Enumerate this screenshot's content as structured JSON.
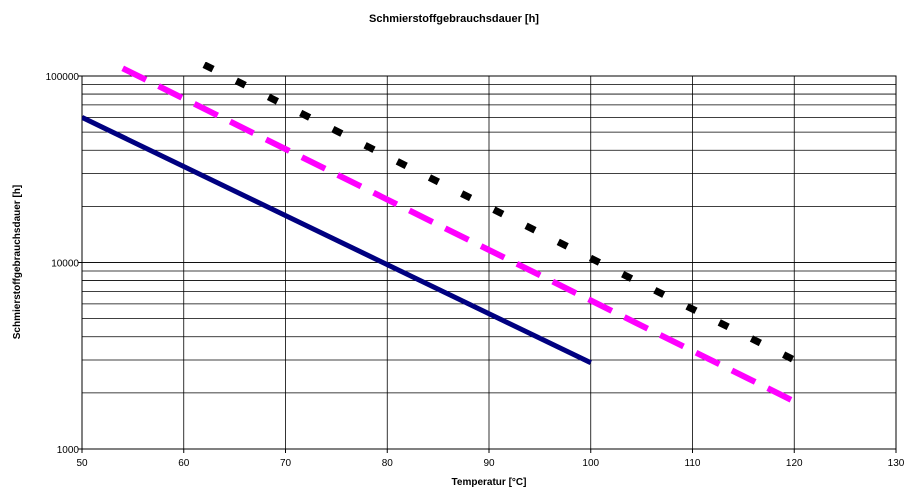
{
  "chart_data": {
    "type": "line",
    "title": "Schmierstoffgebrauchsdauer [h]",
    "xlabel": "Temperatur [°C]",
    "ylabel": "Schmierstoffgebrauchsdauer [h]",
    "xlim": [
      50,
      130
    ],
    "ylim": [
      1000,
      100000
    ],
    "yscale": "log",
    "x_ticks": [
      50,
      60,
      70,
      80,
      90,
      100,
      110,
      120,
      130
    ],
    "y_tick_labels": [
      "1000",
      "10000",
      "100000"
    ],
    "grid": true,
    "legend": "none",
    "series": [
      {
        "color": "#000080",
        "style": "solid",
        "x": [
          50,
          100
        ],
        "y": [
          60000,
          2900
        ]
      },
      {
        "color": "#ff00ff",
        "style": "dashed",
        "x": [
          54,
          120
        ],
        "y": [
          110000,
          1800
        ]
      },
      {
        "color": "#000000",
        "style": "dotted",
        "x": [
          62,
          120
        ],
        "y": [
          115000,
          3000
        ]
      }
    ]
  }
}
